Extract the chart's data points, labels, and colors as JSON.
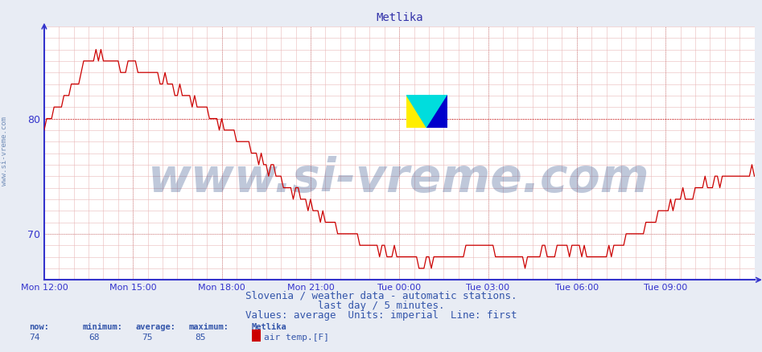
{
  "title": "Metlika",
  "title_color": "#3333aa",
  "title_fontsize": 10,
  "bg_color": "#e8ecf4",
  "plot_bg_color": "#ffffff",
  "line_color": "#cc0000",
  "axis_color": "#3333cc",
  "grid_color_dotted": "#ddaaaa",
  "avg_line_color": "#dd4444",
  "footer_line1": "Slovenia / weather data - automatic stations.",
  "footer_line2": "last day / 5 minutes.",
  "footer_line3": "Values: average  Units: imperial  Line: first",
  "footer_color": "#3355aa",
  "footer_fontsize": 9,
  "stats_label_color": "#3355aa",
  "stats_value_color": "#3355aa",
  "stats_now": 74,
  "stats_min": 68,
  "stats_avg": 75,
  "stats_max": 85,
  "stats_station": "Metlika",
  "legend_label": "air temp.[F]",
  "legend_color": "#cc0000",
  "watermark_text": "www.si-vreme.com",
  "watermark_color": "#1a3a7a",
  "watermark_alpha": 0.28,
  "watermark_fontsize": 42,
  "xtick_labels": [
    "Mon 12:00",
    "Mon 15:00",
    "Mon 18:00",
    "Mon 21:00",
    "Tue 00:00",
    "Tue 03:00",
    "Tue 06:00",
    "Tue 09:00"
  ],
  "xtick_positions": [
    0,
    36,
    72,
    108,
    144,
    180,
    216,
    252
  ],
  "side_label": "www.si-vreme.com",
  "side_label_color": "#5577aa",
  "side_label_fontsize": 6.5,
  "yticks": [
    70,
    80
  ],
  "ymin": 66.0,
  "ymax": 88.0,
  "xmin": 0,
  "xmax": 288
}
